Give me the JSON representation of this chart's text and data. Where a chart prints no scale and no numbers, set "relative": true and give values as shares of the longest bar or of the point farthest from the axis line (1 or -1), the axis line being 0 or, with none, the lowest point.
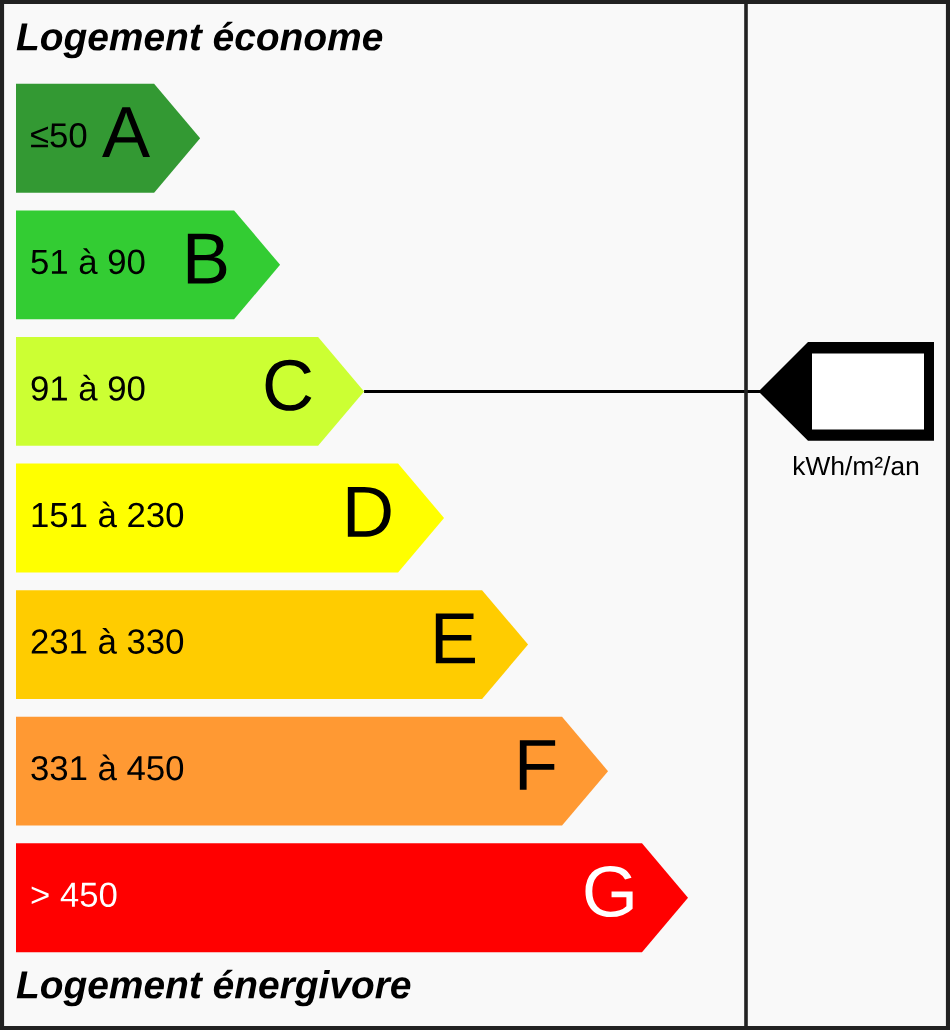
{
  "chart_data": {
    "type": "bar",
    "orientation": "horizontal",
    "relative": true,
    "title": "Logement économe",
    "categories": [
      "A",
      "B",
      "C",
      "D",
      "E",
      "F",
      "G"
    ],
    "values": [
      0.274,
      0.393,
      0.518,
      0.637,
      0.762,
      0.881,
      1.0
    ],
    "colors": [
      "#339933",
      "#33cc33",
      "#ccff33",
      "#ffff00",
      "#ffcc00",
      "#ff9933",
      "#ff0000"
    ],
    "annotations": [
      "≤50",
      "51 à 90",
      "91 à 90",
      "151 à 230",
      "231 à 330",
      "331 à 450",
      "> 450",
      "Logement énergivore",
      "kWh/m²/an"
    ]
  }
}
